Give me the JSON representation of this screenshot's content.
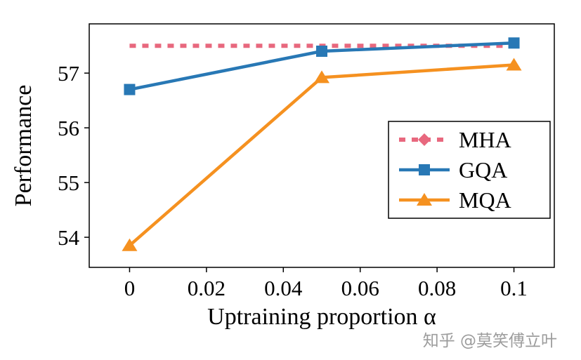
{
  "page": {
    "background": "#ffffff"
  },
  "watermark": {
    "text": "知乎 @莫笑傅立叶",
    "color": "#9c9c9c"
  },
  "chart_data": {
    "type": "line",
    "title": "",
    "xlabel": "Uptraining proportion α",
    "ylabel": "Performance",
    "xlim": [
      -0.0105,
      0.1105
    ],
    "ylim": [
      53.45,
      57.9
    ],
    "x_ticks": [
      0,
      0.02,
      0.04,
      0.06,
      0.08,
      0.1
    ],
    "x_tick_labels": [
      "0",
      "0.02",
      "0.04",
      "0.06",
      "0.08",
      "0.1"
    ],
    "y_ticks": [
      54,
      55,
      56,
      57
    ],
    "y_tick_labels": [
      "54",
      "55",
      "56",
      "57"
    ],
    "grid": false,
    "frame": true,
    "legend": {
      "position": "right-center",
      "entries": [
        "MHA",
        "GQA",
        "MQA"
      ]
    },
    "series": [
      {
        "name": "MHA",
        "color": "#e8687e",
        "style": "dashed",
        "marker": "diamond",
        "marker_on_line": false,
        "x": [
          0,
          0.1
        ],
        "y": [
          57.5,
          57.5
        ]
      },
      {
        "name": "GQA",
        "color": "#2878b5",
        "style": "solid",
        "marker": "square",
        "marker_on_line": true,
        "x": [
          0,
          0.05,
          0.1
        ],
        "y": [
          56.7,
          57.4,
          57.55
        ]
      },
      {
        "name": "MQA",
        "color": "#f59120",
        "style": "solid",
        "marker": "triangle",
        "marker_on_line": true,
        "x": [
          0,
          0.05,
          0.1
        ],
        "y": [
          53.85,
          56.92,
          57.15
        ]
      }
    ]
  }
}
